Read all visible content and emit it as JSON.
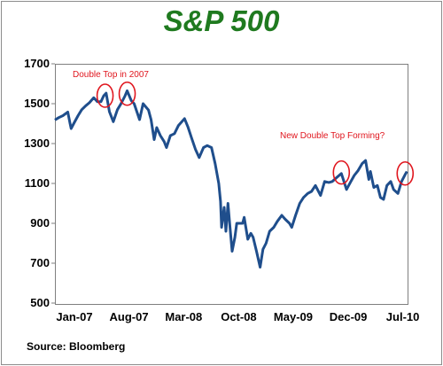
{
  "chart_data": {
    "type": "line",
    "title": "S&P 500",
    "xlabel": "",
    "ylabel": "",
    "ylim": [
      500,
      1700
    ],
    "yticks": [
      "1700",
      "1500",
      "1300",
      "1100",
      "900",
      "700",
      "500"
    ],
    "xticks": [
      "Jan-07",
      "Aug-07",
      "Mar-08",
      "Oct-08",
      "May-09",
      "Dec-09",
      "Jul-10"
    ],
    "x": [
      "2007-01-01",
      "2007-01-15",
      "2007-02-01",
      "2007-02-20",
      "2007-03-01",
      "2007-03-05",
      "2007-03-15",
      "2007-04-01",
      "2007-04-15",
      "2007-05-01",
      "2007-05-15",
      "2007-06-01",
      "2007-06-15",
      "2007-06-29",
      "2007-07-10",
      "2007-07-19",
      "2007-08-01",
      "2007-08-16",
      "2007-09-01",
      "2007-09-15",
      "2007-10-01",
      "2007-10-09",
      "2007-10-25",
      "2007-11-05",
      "2007-11-26",
      "2007-12-10",
      "2007-12-31",
      "2008-01-10",
      "2008-01-22",
      "2008-02-01",
      "2008-02-15",
      "2008-03-01",
      "2008-03-10",
      "2008-03-25",
      "2008-04-10",
      "2008-04-25",
      "2008-05-19",
      "2008-06-01",
      "2008-06-15",
      "2008-07-01",
      "2008-07-15",
      "2008-08-01",
      "2008-08-15",
      "2008-09-01",
      "2008-09-15",
      "2008-09-29",
      "2008-10-06",
      "2008-10-10",
      "2008-10-20",
      "2008-10-27",
      "2008-11-04",
      "2008-11-12",
      "2008-11-20",
      "2008-12-01",
      "2008-12-08",
      "2008-12-31",
      "2009-01-06",
      "2009-01-20",
      "2009-02-01",
      "2009-02-10",
      "2009-02-23",
      "2009-03-09",
      "2009-03-20",
      "2009-04-01",
      "2009-04-15",
      "2009-05-01",
      "2009-05-15",
      "2009-06-01",
      "2009-06-15",
      "2009-07-01",
      "2009-07-10",
      "2009-07-25",
      "2009-08-10",
      "2009-08-25",
      "2009-09-10",
      "2009-09-25",
      "2009-10-10",
      "2009-10-30",
      "2009-11-15",
      "2009-12-01",
      "2009-12-15",
      "2010-01-01",
      "2010-01-19",
      "2010-02-08",
      "2010-02-25",
      "2010-03-10",
      "2010-03-25",
      "2010-04-10",
      "2010-04-23",
      "2010-05-06",
      "2010-05-12",
      "2010-05-25",
      "2010-06-08",
      "2010-06-20",
      "2010-07-02",
      "2010-07-15",
      "2010-07-30",
      "2010-08-10",
      "2010-08-27",
      "2010-09-10",
      "2010-09-24",
      "2010-10-01"
    ],
    "values": [
      1418,
      1430,
      1440,
      1458,
      1400,
      1375,
      1400,
      1440,
      1470,
      1490,
      1505,
      1530,
      1510,
      1510,
      1540,
      1553,
      1460,
      1410,
      1470,
      1500,
      1540,
      1565,
      1515,
      1500,
      1420,
      1500,
      1468,
      1420,
      1320,
      1380,
      1340,
      1310,
      1280,
      1340,
      1350,
      1390,
      1425,
      1385,
      1330,
      1270,
      1230,
      1280,
      1290,
      1280,
      1200,
      1100,
      1010,
      880,
      980,
      860,
      1000,
      880,
      760,
      830,
      900,
      900,
      930,
      820,
      850,
      830,
      760,
      680,
      770,
      800,
      860,
      880,
      910,
      940,
      920,
      900,
      880,
      940,
      1000,
      1030,
      1050,
      1060,
      1090,
      1040,
      1110,
      1105,
      1110,
      1130,
      1150,
      1070,
      1110,
      1140,
      1165,
      1200,
      1215,
      1120,
      1160,
      1080,
      1090,
      1030,
      1020,
      1090,
      1110,
      1070,
      1050,
      1110,
      1145,
      1160
    ],
    "series_color": "#1f4e8c",
    "grid": false,
    "annotations": [
      {
        "text": "Double Top in 2007",
        "color": "#e0161e",
        "markers": [
          {
            "date": "2007-07-15",
            "value": 1540
          },
          {
            "date": "2007-10-09",
            "value": 1550
          }
        ]
      },
      {
        "text": "New Double Top Forming?",
        "color": "#e0161e",
        "markers": [
          {
            "date": "2010-01-19",
            "value": 1155
          },
          {
            "date": "2010-09-24",
            "value": 1150
          }
        ]
      }
    ],
    "source": "Source:  Bloomberg"
  }
}
